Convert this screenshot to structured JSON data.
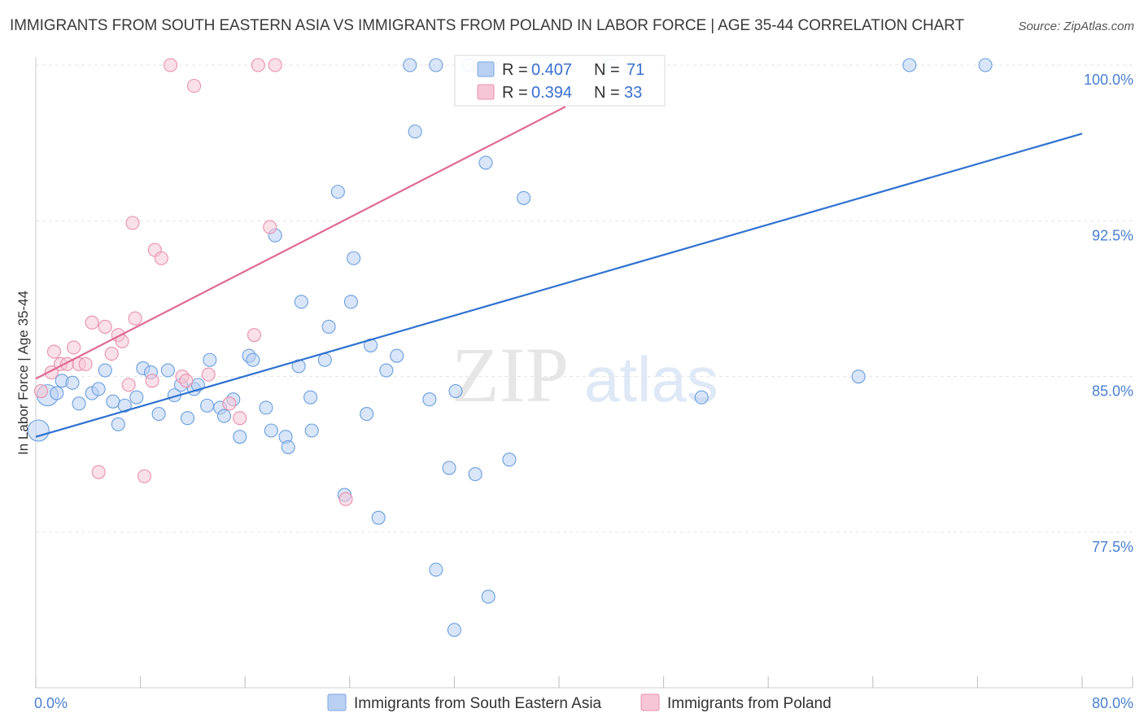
{
  "title": "IMMIGRANTS FROM SOUTH EASTERN ASIA VS IMMIGRANTS FROM POLAND IN LABOR FORCE | AGE 35-44 CORRELATION CHART",
  "source": "Source: ZipAtlas.com",
  "watermark": {
    "zip": "ZIP",
    "atlas": "atlas"
  },
  "legend_box": {
    "rows": [
      {
        "r_label": "R = ",
        "r_value": "0.407",
        "n_label": "N = ",
        "n_value": "71"
      },
      {
        "r_label": "R = ",
        "r_value": "0.394",
        "n_label": "N = ",
        "n_value": "33"
      }
    ]
  },
  "chart_data": {
    "type": "scatter",
    "xlabel": "",
    "ylabel": "In Labor Force | Age 35-44",
    "xlim": [
      0,
      80
    ],
    "ylim": [
      71,
      101
    ],
    "x_tick_labels": [
      {
        "value": 0,
        "label": "0.0%"
      },
      {
        "value": 80,
        "label": "80.0%"
      }
    ],
    "y_tick_labels": [
      {
        "value": 100,
        "label": "100.0%"
      },
      {
        "value": 92.5,
        "label": "92.5%"
      },
      {
        "value": 85,
        "label": "85.0%"
      },
      {
        "value": 77.5,
        "label": "77.5%"
      }
    ],
    "grid": true,
    "legend_position": "top-center",
    "series": [
      {
        "name": "Immigrants from South Eastern Asia",
        "color": "#6a9fe0",
        "fill": "#b9d0f2",
        "trend": {
          "x0": 0,
          "y0": 82.1,
          "x1": 80,
          "y1": 96.7
        },
        "points": [
          [
            0.2,
            82.4
          ],
          [
            0.9,
            84.1
          ],
          [
            1.6,
            84.2
          ],
          [
            2.0,
            84.8
          ],
          [
            2.8,
            84.7
          ],
          [
            3.3,
            83.7
          ],
          [
            4.3,
            84.2
          ],
          [
            4.8,
            84.4
          ],
          [
            5.3,
            85.3
          ],
          [
            5.9,
            83.8
          ],
          [
            6.3,
            82.7
          ],
          [
            6.8,
            83.6
          ],
          [
            7.7,
            84.0
          ],
          [
            8.2,
            85.4
          ],
          [
            8.8,
            85.2
          ],
          [
            9.4,
            83.2
          ],
          [
            10.1,
            85.3
          ],
          [
            10.6,
            84.1
          ],
          [
            11.1,
            84.6
          ],
          [
            11.6,
            83.0
          ],
          [
            12.1,
            84.4
          ],
          [
            12.4,
            84.6
          ],
          [
            13.1,
            83.6
          ],
          [
            13.3,
            85.8
          ],
          [
            14.1,
            83.5
          ],
          [
            14.4,
            83.1
          ],
          [
            15.1,
            83.9
          ],
          [
            15.6,
            82.1
          ],
          [
            16.3,
            86.0
          ],
          [
            16.6,
            85.8
          ],
          [
            17.6,
            83.5
          ],
          [
            18.0,
            82.4
          ],
          [
            18.3,
            91.8
          ],
          [
            19.1,
            82.1
          ],
          [
            19.3,
            81.6
          ],
          [
            20.1,
            85.5
          ],
          [
            20.3,
            88.6
          ],
          [
            21.0,
            84.0
          ],
          [
            21.1,
            82.4
          ],
          [
            22.1,
            85.8
          ],
          [
            22.4,
            87.4
          ],
          [
            23.1,
            93.9
          ],
          [
            23.6,
            79.3
          ],
          [
            24.1,
            88.6
          ],
          [
            24.3,
            90.7
          ],
          [
            25.3,
            83.2
          ],
          [
            25.6,
            86.5
          ],
          [
            26.2,
            78.2
          ],
          [
            26.8,
            85.3
          ],
          [
            27.6,
            86.0
          ],
          [
            28.6,
            100.0
          ],
          [
            29.0,
            96.8
          ],
          [
            30.1,
            83.9
          ],
          [
            30.6,
            75.7
          ],
          [
            30.6,
            100.0
          ],
          [
            31.6,
            80.6
          ],
          [
            32.0,
            72.8
          ],
          [
            32.1,
            84.3
          ],
          [
            33.1,
            100.0
          ],
          [
            33.6,
            80.3
          ],
          [
            34.4,
            95.3
          ],
          [
            34.6,
            74.4
          ],
          [
            34.8,
            100.0
          ],
          [
            36.2,
            81.0
          ],
          [
            37.3,
            93.6
          ],
          [
            43.9,
            100.0
          ],
          [
            45.8,
            100.0
          ],
          [
            50.9,
            84.0
          ],
          [
            62.9,
            85.0
          ],
          [
            66.8,
            100.0
          ],
          [
            72.6,
            100.0
          ]
        ]
      },
      {
        "name": "Immigrants from Poland",
        "color": "#e890ae",
        "fill": "#f6c6d6",
        "trend": {
          "x0": 0,
          "y0": 84.9,
          "x1": 40.5,
          "y1": 98.0
        },
        "points": [
          [
            0.4,
            84.3
          ],
          [
            1.2,
            85.2
          ],
          [
            1.4,
            86.2
          ],
          [
            1.9,
            85.6
          ],
          [
            2.4,
            85.6
          ],
          [
            2.9,
            86.4
          ],
          [
            3.3,
            85.6
          ],
          [
            3.8,
            85.6
          ],
          [
            4.3,
            87.6
          ],
          [
            4.8,
            80.4
          ],
          [
            5.3,
            87.4
          ],
          [
            5.8,
            86.1
          ],
          [
            6.3,
            87.0
          ],
          [
            6.6,
            86.7
          ],
          [
            7.1,
            84.6
          ],
          [
            7.4,
            92.4
          ],
          [
            7.6,
            87.8
          ],
          [
            8.3,
            80.2
          ],
          [
            8.9,
            84.8
          ],
          [
            9.1,
            91.1
          ],
          [
            9.6,
            90.7
          ],
          [
            10.3,
            100.0
          ],
          [
            11.2,
            85.0
          ],
          [
            11.5,
            84.8
          ],
          [
            12.1,
            99.0
          ],
          [
            13.2,
            85.1
          ],
          [
            14.8,
            83.7
          ],
          [
            15.6,
            83.0
          ],
          [
            16.7,
            87.0
          ],
          [
            17.0,
            100.0
          ],
          [
            17.9,
            92.2
          ],
          [
            18.3,
            100.0
          ],
          [
            23.7,
            79.1
          ]
        ]
      }
    ]
  },
  "bottom_legend": {
    "items": [
      {
        "label": "Immigrants from South Eastern Asia"
      },
      {
        "label": "Immigrants from Poland"
      }
    ]
  }
}
